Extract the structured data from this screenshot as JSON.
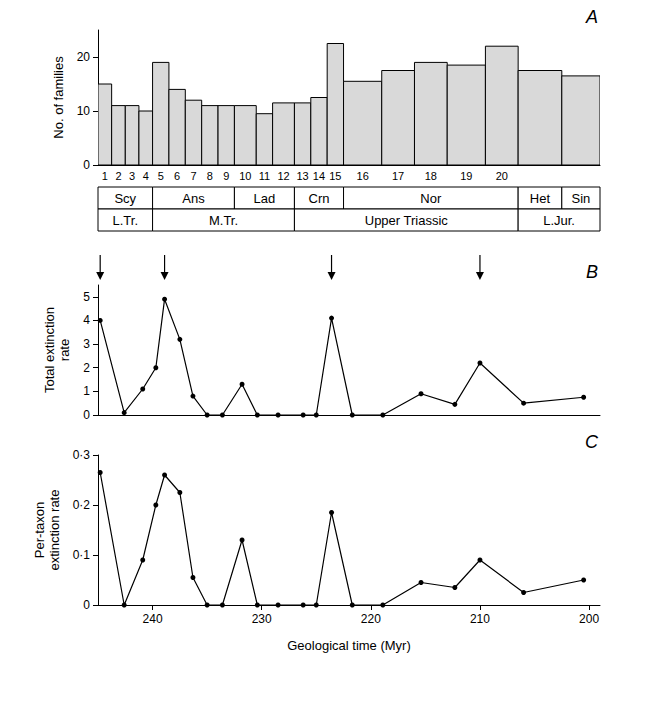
{
  "chart_data": [
    {
      "type": "bar",
      "title": "A",
      "ylabel": "No. of families",
      "bins": [
        245,
        243.75,
        242.5,
        241.25,
        240,
        238.5,
        237,
        235.5,
        234,
        232.5,
        230.5,
        229,
        227,
        225.5,
        224,
        222.5,
        219,
        216,
        213,
        209.5,
        206.5,
        202.5,
        199
      ],
      "values": [
        15,
        11,
        11,
        10,
        19,
        14,
        12,
        11,
        11,
        11,
        9.5,
        11.5,
        11.5,
        12.5,
        22.5,
        15.5,
        17.5,
        19,
        18.5,
        22,
        17.5,
        16.5
      ],
      "categories": [
        "1",
        "2",
        "3",
        "4",
        "5",
        "6",
        "7",
        "8",
        "9",
        "10",
        "11",
        "12",
        "13",
        "14",
        "15",
        "16",
        "17",
        "18",
        "19",
        "20",
        null,
        null
      ],
      "stages": [
        {
          "label": "Scy",
          "start": 245,
          "end": 240
        },
        {
          "label": "Ans",
          "start": 240,
          "end": 232.5
        },
        {
          "label": "Lad",
          "start": 232.5,
          "end": 227
        },
        {
          "label": "Crn",
          "start": 227,
          "end": 222.5
        },
        {
          "label": "Nor",
          "start": 222.5,
          "end": 206.5
        },
        {
          "label": "Het",
          "start": 206.5,
          "end": 202.5
        },
        {
          "label": "Sin",
          "start": 202.5,
          "end": 199
        }
      ],
      "epochs": [
        {
          "label": "L.Tr.",
          "start": 245,
          "end": 240
        },
        {
          "label": "M.Tr.",
          "start": 240,
          "end": 227
        },
        {
          "label": "Upper Triassic",
          "start": 227,
          "end": 206.5
        },
        {
          "label": "L.Jur.",
          "start": 206.5,
          "end": 199
        }
      ],
      "xlim": [
        245,
        199
      ],
      "ylim": [
        0,
        25
      ],
      "yticks": [
        0,
        10,
        20
      ],
      "color": "#d9d9d9",
      "grid": false,
      "tick_labels": "y"
    },
    {
      "type": "line",
      "title": "B",
      "ylabel": "Total extinction rate",
      "x": [
        244.8,
        242.6,
        240.9,
        239.7,
        238.9,
        237.5,
        236.3,
        235,
        233.6,
        231.8,
        230.4,
        228.5,
        226.2,
        225,
        223.6,
        221.7,
        218.9,
        215.4,
        212.3,
        210,
        206,
        200.5
      ],
      "values": [
        4.0,
        0.1,
        1.1,
        2.0,
        4.9,
        3.2,
        0.8,
        0,
        0,
        1.3,
        0,
        0,
        0,
        0,
        4.1,
        0,
        0,
        0.9,
        0.45,
        2.2,
        0.5,
        0.75
      ],
      "arrows": [
        244.8,
        238.9,
        223.6,
        210
      ],
      "xlim": [
        245,
        199
      ],
      "ylim": [
        0,
        5.5
      ],
      "yticks": [
        0,
        1,
        2,
        3,
        4,
        5
      ],
      "color": "#000000",
      "marker": "circle",
      "grid": false,
      "tick_labels": "y"
    },
    {
      "type": "line",
      "title": "C",
      "xlabel": "Geological time (Myr)",
      "ylabel": "Per-taxon extinction rate",
      "x": [
        244.8,
        242.6,
        240.9,
        239.7,
        238.9,
        237.5,
        236.3,
        235,
        233.6,
        231.8,
        230.4,
        228.5,
        226.2,
        225,
        223.6,
        221.7,
        218.9,
        215.4,
        212.3,
        210,
        206,
        200.5
      ],
      "values": [
        0.265,
        0,
        0.09,
        0.2,
        0.26,
        0.225,
        0.055,
        0,
        0,
        0.13,
        0,
        0,
        0,
        0,
        0.185,
        0,
        0,
        0.045,
        0.035,
        0.09,
        0.025,
        0.05
      ],
      "xlim": [
        245,
        199
      ],
      "ylim": [
        0,
        0.3
      ],
      "xticks": [
        240,
        230,
        220,
        210,
        200
      ],
      "yticks": [
        0,
        {
          "value": 0.1,
          "label": "0·1"
        },
        {
          "value": 0.2,
          "label": "0·2"
        },
        {
          "value": 0.3,
          "label": "0·3"
        }
      ],
      "color": "#000000",
      "marker": "circle",
      "grid": false
    }
  ]
}
